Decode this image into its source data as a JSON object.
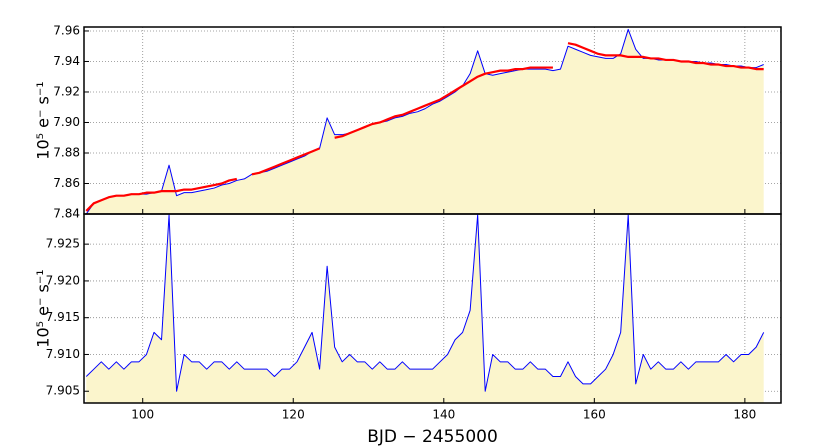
{
  "chart_data": [
    {
      "type": "line",
      "y_label": "10⁵ e⁻ s⁻¹",
      "x": [
        92.5,
        93.5,
        94.5,
        95.5,
        96.5,
        97.5,
        98.5,
        99.5,
        100.5,
        101.5,
        102.5,
        103.5,
        104.5,
        105.5,
        106.5,
        107.5,
        108.5,
        109.5,
        110.5,
        111.5,
        112.5,
        113.5,
        114.5,
        115.5,
        116.5,
        117.5,
        118.5,
        119.5,
        120.5,
        121.5,
        122.5,
        123.5,
        124.5,
        125.5,
        126.5,
        127.5,
        128.5,
        129.5,
        130.5,
        131.5,
        132.5,
        133.5,
        134.5,
        135.5,
        136.5,
        137.5,
        138.5,
        139.5,
        140.5,
        141.5,
        142.5,
        143.5,
        144.5,
        145.5,
        146.5,
        147.5,
        148.5,
        149.5,
        150.5,
        151.5,
        152.5,
        153.5,
        154.5,
        155.5,
        156.5,
        157.5,
        158.5,
        159.5,
        160.5,
        161.5,
        162.5,
        163.5,
        164.5,
        165.5,
        166.5,
        167.5,
        168.5,
        169.5,
        170.5,
        171.5,
        172.5,
        173.5,
        174.5,
        175.5,
        176.5,
        177.5,
        178.5,
        179.5,
        180.5,
        181.5,
        182.5
      ],
      "series": [
        {
          "color": "#0000ff",
          "fill_color": "#fbf5cc",
          "line_width": 1,
          "values": [
            7.84,
            7.847,
            7.849,
            7.851,
            7.852,
            7.852,
            7.853,
            7.853,
            7.853,
            7.854,
            7.855,
            7.872,
            7.852,
            7.854,
            7.854,
            7.855,
            7.856,
            7.857,
            7.859,
            7.86,
            7.862,
            7.863,
            7.866,
            7.867,
            7.868,
            7.87,
            7.872,
            7.874,
            7.876,
            7.878,
            7.881,
            7.883,
            7.903,
            7.892,
            7.892,
            7.893,
            7.895,
            7.897,
            7.899,
            7.9,
            7.901,
            7.903,
            7.904,
            7.906,
            7.907,
            7.909,
            7.912,
            7.914,
            7.917,
            7.92,
            7.924,
            7.932,
            7.947,
            7.932,
            7.931,
            7.932,
            7.933,
            7.934,
            7.935,
            7.935,
            7.935,
            7.935,
            7.934,
            7.935,
            7.95,
            7.948,
            7.946,
            7.944,
            7.943,
            7.942,
            7.942,
            7.945,
            7.961,
            7.948,
            7.942,
            7.942,
            7.941,
            7.941,
            7.941,
            7.94,
            7.94,
            7.94,
            7.939,
            7.939,
            7.938,
            7.938,
            7.937,
            7.937,
            7.936,
            7.936,
            7.938
          ]
        },
        {
          "color": "#ff0000",
          "line_width": 2.2,
          "values": [
            7.842,
            7.847,
            7.849,
            7.851,
            7.852,
            7.852,
            7.853,
            7.853,
            7.854,
            7.854,
            7.855,
            7.855,
            7.855,
            7.856,
            7.856,
            7.857,
            7.858,
            7.859,
            7.86,
            7.862,
            7.863,
            null,
            7.866,
            7.867,
            7.869,
            7.871,
            7.873,
            7.875,
            7.877,
            7.879,
            7.881,
            7.883,
            null,
            7.89,
            7.891,
            7.893,
            7.895,
            7.897,
            7.899,
            7.9,
            7.902,
            7.904,
            7.905,
            7.907,
            7.909,
            7.911,
            7.913,
            7.915,
            7.918,
            7.921,
            7.924,
            7.927,
            7.93,
            7.932,
            7.933,
            7.934,
            7.934,
            7.935,
            7.935,
            7.936,
            7.936,
            7.936,
            7.936,
            null,
            7.952,
            7.951,
            7.949,
            7.947,
            7.945,
            7.944,
            7.944,
            7.944,
            7.943,
            7.943,
            7.943,
            7.942,
            7.942,
            7.941,
            7.941,
            7.94,
            7.94,
            7.939,
            7.939,
            7.938,
            7.938,
            7.937,
            7.937,
            7.936,
            7.936,
            7.935,
            7.935
          ]
        }
      ],
      "xlim": [
        92.2,
        184.8
      ],
      "xticks": [
        100,
        120,
        140,
        160,
        180
      ],
      "show_xtick_labels": false,
      "ylim": [
        7.84,
        7.9626
      ],
      "yticks": [
        7.84,
        7.86,
        7.88,
        {
          "value": 7.9,
          "label": "7.90"
        },
        7.92,
        7.94,
        7.96
      ],
      "grid": true
    },
    {
      "type": "line",
      "y_label": "10⁵ e⁻ s⁻¹",
      "x_label": "BJD − 2455000",
      "x": [
        92.5,
        93.5,
        94.5,
        95.5,
        96.5,
        97.5,
        98.5,
        99.5,
        100.5,
        101.5,
        102.5,
        103.5,
        104.5,
        105.5,
        106.5,
        107.5,
        108.5,
        109.5,
        110.5,
        111.5,
        112.5,
        113.5,
        114.5,
        115.5,
        116.5,
        117.5,
        118.5,
        119.5,
        120.5,
        121.5,
        122.5,
        123.5,
        124.5,
        125.5,
        126.5,
        127.5,
        128.5,
        129.5,
        130.5,
        131.5,
        132.5,
        133.5,
        134.5,
        135.5,
        136.5,
        137.5,
        138.5,
        139.5,
        140.5,
        141.5,
        142.5,
        143.5,
        144.5,
        145.5,
        146.5,
        147.5,
        148.5,
        149.5,
        150.5,
        151.5,
        152.5,
        153.5,
        154.5,
        155.5,
        156.5,
        157.5,
        158.5,
        159.5,
        160.5,
        161.5,
        162.5,
        163.5,
        164.5,
        165.5,
        166.5,
        167.5,
        168.5,
        169.5,
        170.5,
        171.5,
        172.5,
        173.5,
        174.5,
        175.5,
        176.5,
        177.5,
        178.5,
        179.5,
        180.5,
        181.5,
        182.5
      ],
      "series": [
        {
          "color": "#0000ff",
          "fill_color": "#fbf5cc",
          "line_width": 1,
          "values": [
            7.907,
            7.908,
            7.909,
            7.908,
            7.909,
            7.908,
            7.909,
            7.909,
            7.91,
            7.913,
            7.912,
            7.929,
            7.905,
            7.91,
            7.909,
            7.909,
            7.908,
            7.909,
            7.909,
            7.908,
            7.909,
            7.908,
            7.908,
            7.908,
            7.908,
            7.907,
            7.908,
            7.908,
            7.909,
            7.911,
            7.913,
            7.908,
            7.922,
            7.911,
            7.909,
            7.91,
            7.909,
            7.909,
            7.908,
            7.909,
            7.908,
            7.908,
            7.909,
            7.908,
            7.908,
            7.908,
            7.908,
            7.909,
            7.91,
            7.912,
            7.913,
            7.916,
            7.929,
            7.905,
            7.91,
            7.909,
            7.909,
            7.908,
            7.908,
            7.909,
            7.908,
            7.908,
            7.907,
            7.907,
            7.909,
            7.907,
            7.906,
            7.906,
            7.907,
            7.908,
            7.91,
            7.913,
            7.929,
            7.906,
            7.91,
            7.908,
            7.909,
            7.908,
            7.908,
            7.909,
            7.908,
            7.909,
            7.909,
            7.909,
            7.909,
            7.91,
            7.909,
            7.91,
            7.91,
            7.911,
            7.913
          ]
        }
      ],
      "xlim": [
        92.2,
        184.8
      ],
      "xticks": [
        100,
        120,
        140,
        160,
        180
      ],
      "show_xtick_labels": true,
      "ylim": [
        7.9034,
        7.9291
      ],
      "yticks": [
        7.905,
        {
          "value": 7.91,
          "label": "7.910"
        },
        7.915,
        {
          "value": 7.92,
          "label": "7.920"
        },
        7.925
      ],
      "grid": true
    }
  ]
}
